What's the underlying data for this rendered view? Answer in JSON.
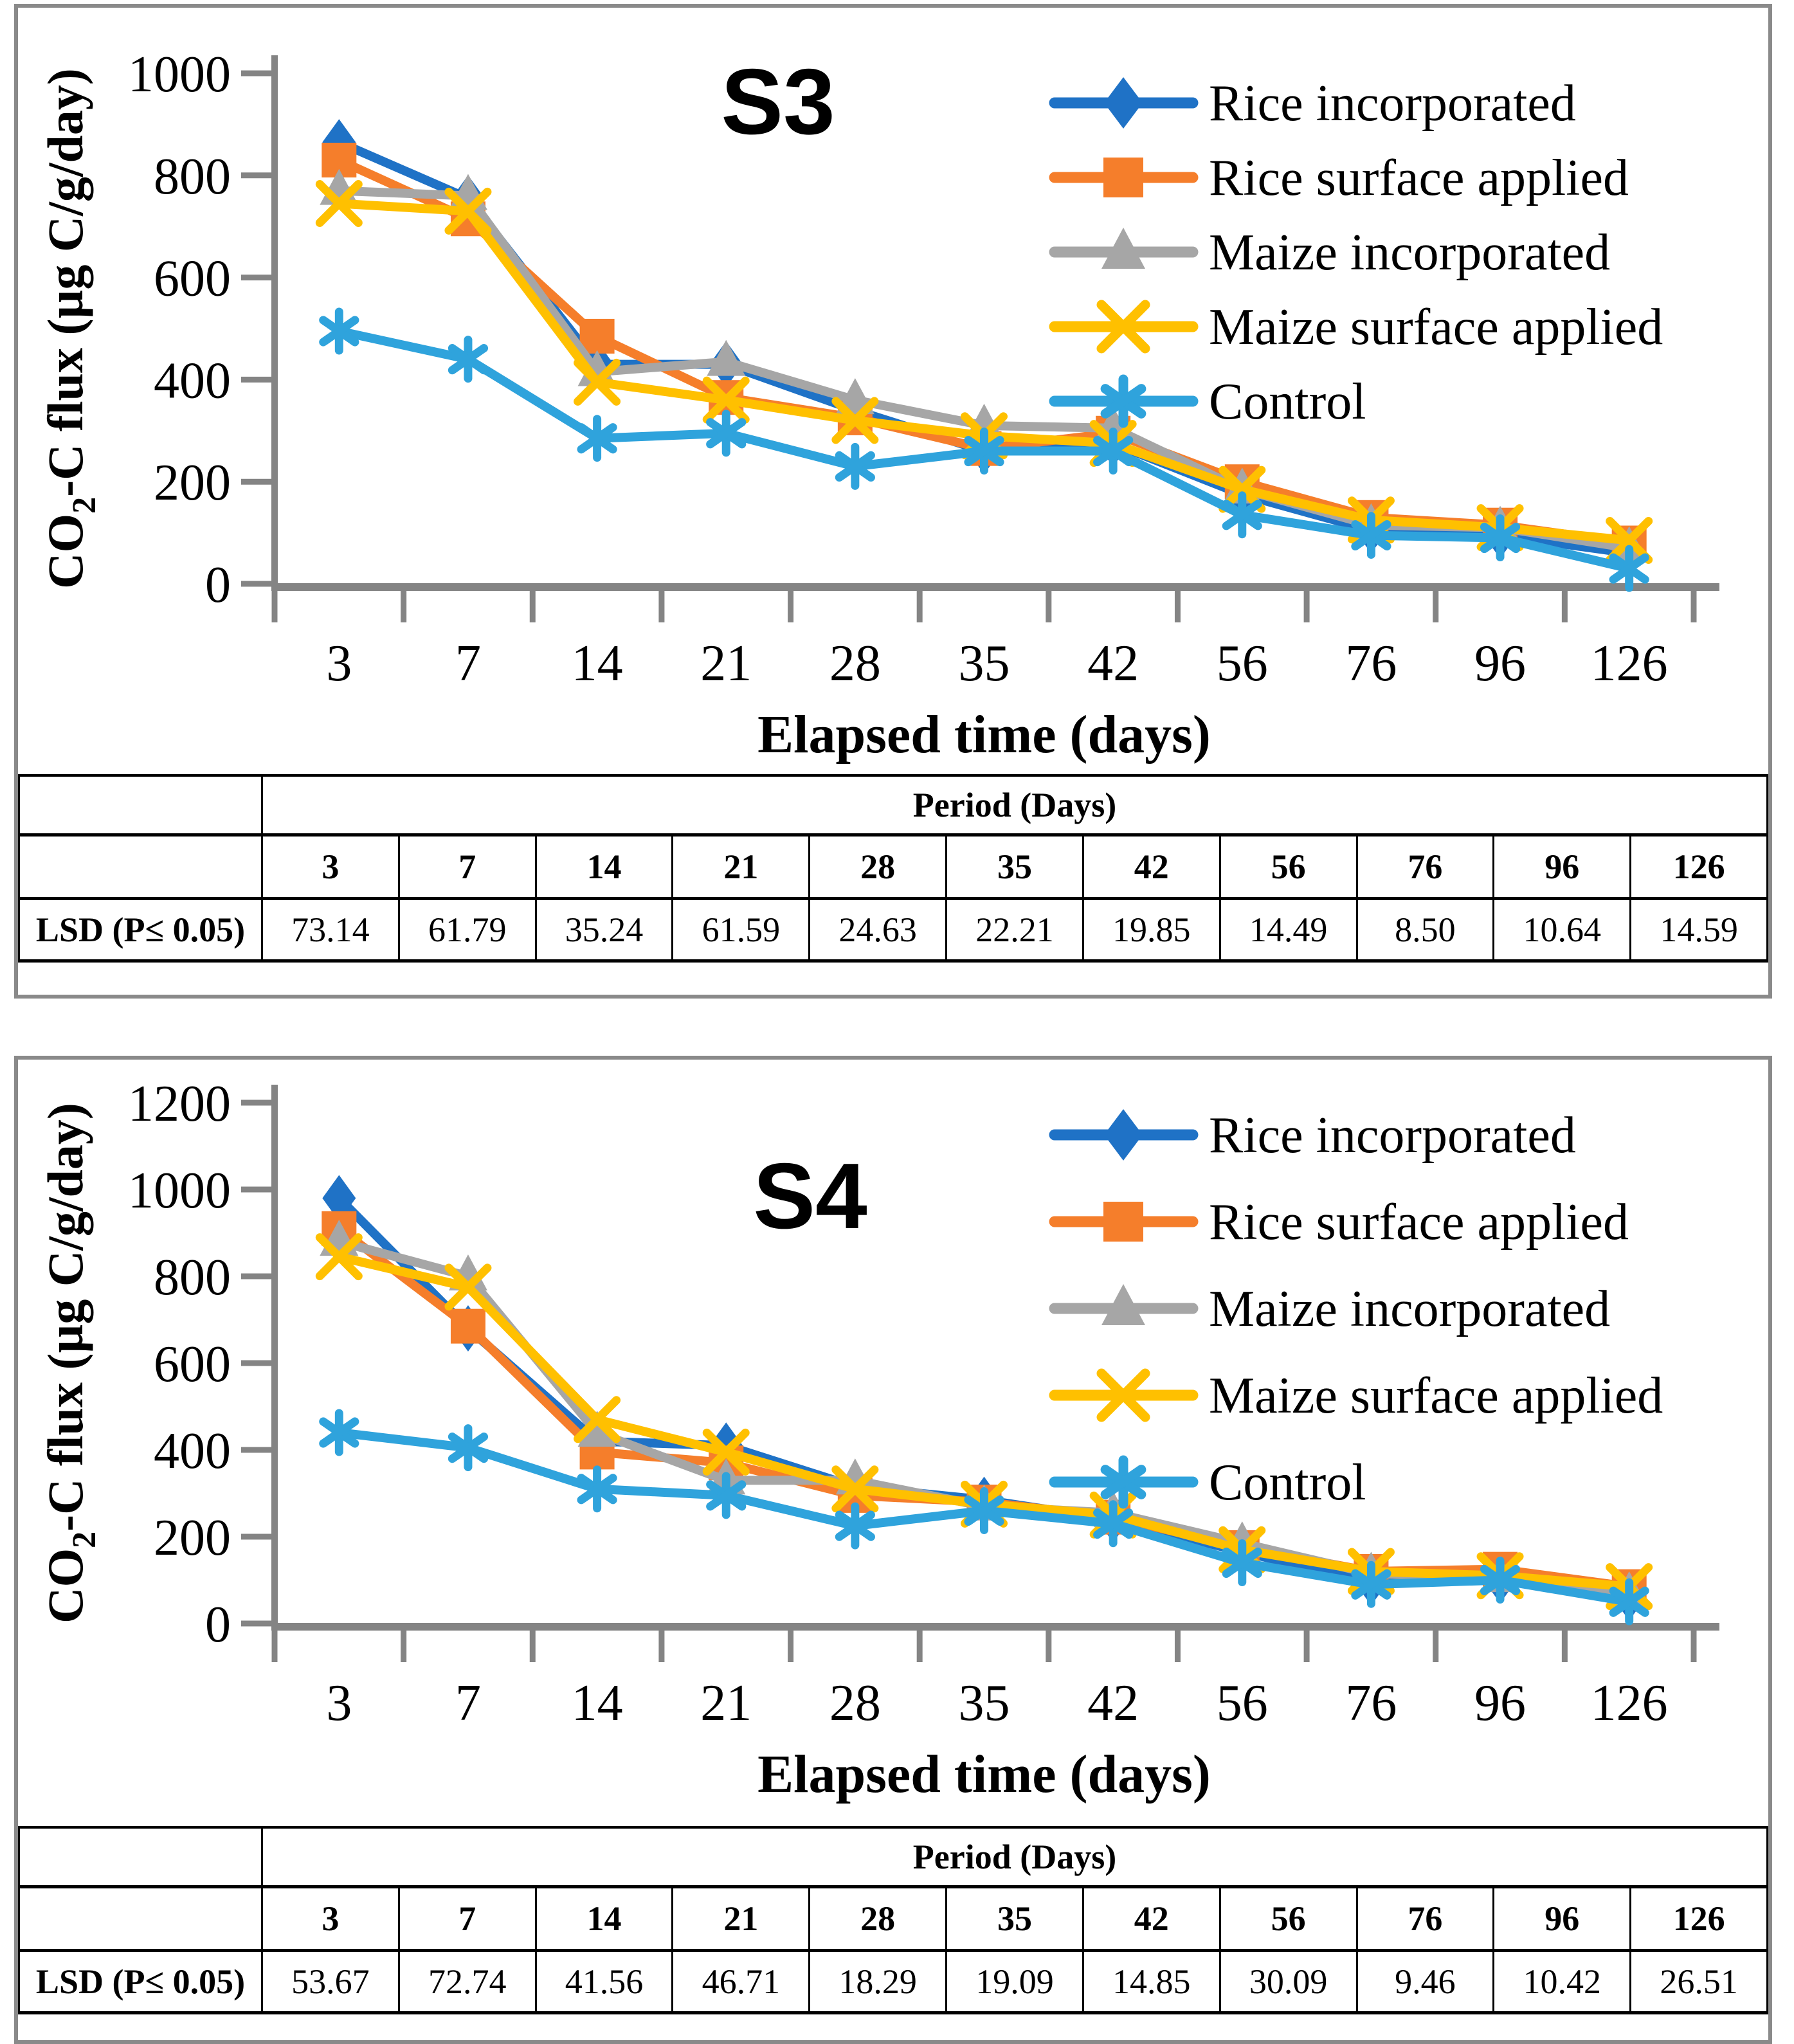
{
  "figure": {
    "axis_color": "#848484",
    "text_color": "#000000",
    "panel_border_color": "#8a8a8a"
  },
  "chart_data": [
    {
      "type": "line",
      "panel_label": "S3",
      "x": {
        "label": "Elapsed time (days)",
        "categories": [
          "3",
          "7",
          "14",
          "21",
          "28",
          "35",
          "42",
          "56",
          "76",
          "96",
          "126"
        ]
      },
      "y": {
        "label": "CO2-C flux (µg C/g/day)",
        "label_pre": "CO",
        "label_sub": "2",
        "label_post": "-C flux (µg C/g/day)",
        "min": 0,
        "max": 1000,
        "step": 200,
        "ticks": [
          0,
          200,
          400,
          600,
          800,
          1000
        ]
      },
      "grid": "off",
      "legend_position": "inside-top-right",
      "series": [
        {
          "name": "Rice incorporated",
          "color": "#1f72c6",
          "marker": "diamond",
          "values": [
            865,
            755,
            430,
            430,
            340,
            260,
            275,
            175,
            105,
            95,
            60
          ]
        },
        {
          "name": "Rice surface applied",
          "color": "#f57e2b",
          "marker": "square",
          "values": [
            830,
            715,
            485,
            365,
            325,
            265,
            295,
            200,
            130,
            115,
            80
          ]
        },
        {
          "name": "Maize incorporated",
          "color": "#a6a6a6",
          "marker": "triangle",
          "values": [
            770,
            760,
            415,
            435,
            360,
            310,
            305,
            185,
            115,
            110,
            70
          ]
        },
        {
          "name": "Maize surface applied",
          "color": "#ffc000",
          "marker": "x",
          "values": [
            745,
            730,
            395,
            360,
            320,
            290,
            275,
            185,
            125,
            110,
            85
          ]
        },
        {
          "name": "Control",
          "color": "#2fa3dc",
          "marker": "asterisk",
          "values": [
            495,
            440,
            285,
            295,
            230,
            260,
            260,
            135,
            95,
            90,
            30
          ]
        }
      ],
      "lsd_table": {
        "header": "Period (Days)",
        "row_label": "LSD (P≤ 0.05)",
        "columns": [
          "3",
          "7",
          "14",
          "21",
          "28",
          "35",
          "42",
          "56",
          "76",
          "96",
          "126"
        ],
        "values": [
          "73.14",
          "61.79",
          "35.24",
          "61.59",
          "24.63",
          "22.21",
          "19.85",
          "14.49",
          "8.50",
          "10.64",
          "14.59"
        ]
      }
    },
    {
      "type": "line",
      "panel_label": "S4",
      "x": {
        "label": "Elapsed time (days)",
        "categories": [
          "3",
          "7",
          "14",
          "21",
          "28",
          "35",
          "42",
          "56",
          "76",
          "96",
          "126"
        ]
      },
      "y": {
        "label": "CO2-C flux (µg C/g/day)",
        "label_pre": "CO",
        "label_sub": "2",
        "label_post": "-C flux (µg C/g/day)",
        "min": 0,
        "max": 1200,
        "step": 200,
        "ticks": [
          0,
          200,
          400,
          600,
          800,
          1000,
          1200
        ]
      },
      "grid": "off",
      "legend_position": "inside-top-right",
      "series": [
        {
          "name": "Rice incorporated",
          "color": "#1f72c6",
          "marker": "diamond",
          "values": [
            980,
            680,
            420,
            410,
            315,
            285,
            240,
            165,
            95,
            100,
            60
          ]
        },
        {
          "name": "Rice surface applied",
          "color": "#f57e2b",
          "marker": "square",
          "values": [
            910,
            685,
            395,
            370,
            295,
            280,
            245,
            175,
            120,
            125,
            85
          ]
        },
        {
          "name": "Maize incorporated",
          "color": "#a6a6a6",
          "marker": "triangle",
          "values": [
            880,
            800,
            440,
            330,
            330,
            270,
            255,
            185,
            115,
            105,
            70
          ]
        },
        {
          "name": "Maize surface applied",
          "color": "#ffc000",
          "marker": "x",
          "values": [
            845,
            775,
            470,
            395,
            310,
            275,
            250,
            170,
            120,
            110,
            85
          ]
        },
        {
          "name": "Control",
          "color": "#2fa3dc",
          "marker": "asterisk",
          "values": [
            440,
            405,
            310,
            295,
            225,
            260,
            230,
            140,
            90,
            100,
            50
          ]
        }
      ],
      "lsd_table": {
        "header": "Period (Days)",
        "row_label": "LSD (P≤ 0.05)",
        "columns": [
          "3",
          "7",
          "14",
          "21",
          "28",
          "35",
          "42",
          "56",
          "76",
          "96",
          "126"
        ],
        "values": [
          "53.67",
          "72.74",
          "41.56",
          "46.71",
          "18.29",
          "19.09",
          "14.85",
          "30.09",
          "9.46",
          "10.42",
          "26.51"
        ]
      }
    }
  ]
}
